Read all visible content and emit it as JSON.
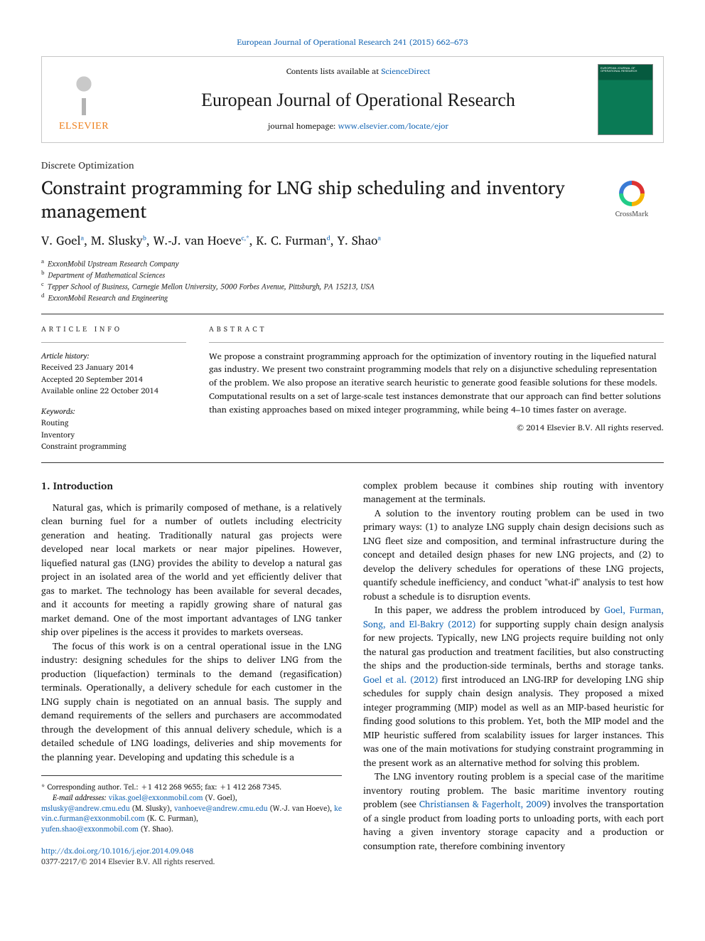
{
  "top_link": {
    "prefix": "",
    "journal": "European Journal of Operational Research 241 (2015) 662–673"
  },
  "header": {
    "elsevier_word": "ELSEVIER",
    "contents_prefix": "Contents lists available at ",
    "contents_link": "ScienceDirect",
    "journal_name": "European Journal of Operational Research",
    "homepage_prefix": "journal homepage: ",
    "homepage_link": "www.elsevier.com/locate/ejor",
    "cover_label": "EUROPEAN JOURNAL OF OPERATIONAL RESEARCH"
  },
  "section_label": "Discrete Optimization",
  "title": "Constraint programming for LNG ship scheduling and inventory management",
  "crossmark_label": "CrossMark",
  "authors_html": "V. Goel<sup>a</sup>, M. Slusky<sup>b</sup>, W.-J. van Hoeve<sup>c,*</sup>, K. C. Furman<sup>d</sup>, Y. Shao<sup>a</sup>",
  "affiliations": [
    {
      "sup": "a",
      "text": "ExxonMobil Upstream Research Company"
    },
    {
      "sup": "b",
      "text": "Department of Mathematical Sciences"
    },
    {
      "sup": "c",
      "text": "Tepper School of Business, Carnegie Mellon University, 5000 Forbes Avenue, Pittsburgh, PA 15213, USA"
    },
    {
      "sup": "d",
      "text": "ExxonMobil Research and Engineering"
    }
  ],
  "article_info": {
    "heading": "article info",
    "history_head": "Article history:",
    "history": [
      "Received 23 January 2014",
      "Accepted 20 September 2014",
      "Available online 22 October 2014"
    ],
    "keywords_head": "Keywords:",
    "keywords": [
      "Routing",
      "Inventory",
      "Constraint programming"
    ]
  },
  "abstract": {
    "heading": "abstract",
    "body": "We propose a constraint programming approach for the optimization of inventory routing in the liquefied natural gas industry. We present two constraint programming models that rely on a disjunctive scheduling representation of the problem. We also propose an iterative search heuristic to generate good feasible solutions for these models. Computational results on a set of large-scale test instances demonstrate that our approach can find better solutions than existing approaches based on mixed integer programming, while being 4–10 times faster on average.",
    "copyright": "© 2014 Elsevier B.V. All rights reserved."
  },
  "intro_heading": "1.  Introduction",
  "left_paras": [
    "Natural gas, which is primarily composed of methane, is a relatively clean burning fuel for a number of outlets including electricity generation and heating. Traditionally natural gas projects were developed near local markets or near major pipelines. However, liquefied natural gas (LNG) provides the ability to develop a natural gas project in an isolated area of the world and yet efficiently deliver that gas to market. The technology has been available for several decades, and it accounts for meeting a rapidly growing share of natural gas market demand. One of the most important advantages of LNG tanker ship over pipelines is the access it provides to markets overseas.",
    "The focus of this work is on a central operational issue in the LNG industry: designing schedules for the ships to deliver LNG from the production (liquefaction) terminals to the demand (regasification) terminals. Operationally, a delivery schedule for each customer in the LNG supply chain is negotiated on an annual basis. The supply and demand requirements of the sellers and purchasers are accommodated through the development of this annual delivery schedule, which is a detailed schedule of LNG loadings, deliveries and ship movements for the planning year. Developing and updating this schedule is a"
  ],
  "right_paras": [
    {
      "text": "complex problem because it combines ship routing with inventory management at the terminals.",
      "indent": false
    },
    {
      "text": "A solution to the inventory routing problem can be used in two primary ways: (1) to analyze LNG supply chain design decisions such as LNG fleet size and composition, and terminal infrastructure during the concept and detailed design phases for new LNG projects, and (2) to develop the delivery schedules for operations of these LNG projects, quantify schedule inefficiency, and conduct \"what-if\" analysis to test how robust a schedule is to disruption events.",
      "indent": true
    },
    {
      "text_pre": "In this paper, we address the problem introduced by ",
      "link1": "Goel, Furman, Song, and El-Bakry (2012)",
      "text_mid": " for supporting supply chain design analysis for new projects. Typically, new LNG projects require building not only the natural gas production and treatment facilities, but also constructing the ships and the production-side terminals, berths and storage tanks. ",
      "link2": "Goel et al. (2012)",
      "text_post": " first introduced an LNG-IRP for developing LNG ship schedules for supply chain design analysis. They proposed a mixed integer programming (MIP) model as well as an MIP-based heuristic for finding good solutions to this problem. Yet, both the MIP model and the MIP heuristic suffered from scalability issues for larger instances. This was one of the main motivations for studying constraint programming in the present work as an alternative method for solving this problem.",
      "indent": true
    },
    {
      "text_pre": "The LNG inventory routing problem is a special case of the maritime inventory routing problem. The basic maritime inventory routing problem (see ",
      "link1": "Christiansen & Fagerholt, 2009",
      "text_post": ") involves the transportation of a single product from loading ports to unloading ports, with each port having a given inventory storage capacity and a production or consumption rate, therefore combining inventory",
      "indent": true
    }
  ],
  "footnote": {
    "corr": "* Corresponding author. Tel.: +1 412 268 9655; fax: +1 412 268 7345.",
    "email_label": "E-mail addresses: ",
    "emails": [
      {
        "addr": "vikas.goel@exxonmobil.com",
        "who": " (V. Goel),"
      },
      {
        "addr": "mslusky@andrew.cmu.edu",
        "who": " (M. Slusky), "
      },
      {
        "addr": "vanhoeve@andrew.cmu.edu",
        "who": " (W.-J. van Hoeve), "
      },
      {
        "addr": "kevin.c.furman@exxonmobil.com",
        "who": " (K. C. Furman),"
      },
      {
        "addr": "yufen.shao@exxonmobil.com",
        "who": " (Y. Shao)."
      }
    ]
  },
  "doi": {
    "link": "http://dx.doi.org/10.1016/j.ejor.2014.09.048",
    "issn": "0377-2217/© 2014 Elsevier B.V. All rights reserved."
  },
  "colors": {
    "link": "#1a69b5",
    "elsevier_orange": "#ee7f1a",
    "rule": "#333333"
  }
}
